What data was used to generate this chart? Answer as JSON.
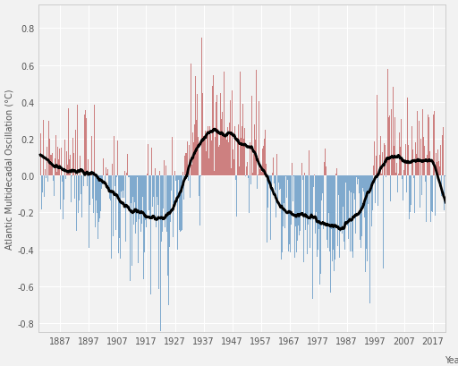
{
  "title": "",
  "ylabel": "Atlantic Multidecadal Oscillation (°C)",
  "xlabel": "Year",
  "xlim": [
    1879.5,
    2021.5
  ],
  "ylim": [
    -0.85,
    0.93
  ],
  "yticks": [
    -0.8,
    -0.6,
    -0.4,
    -0.2,
    0.0,
    0.2,
    0.4,
    0.6,
    0.8
  ],
  "xticks": [
    1887,
    1897,
    1907,
    1917,
    1927,
    1937,
    1947,
    1957,
    1967,
    1977,
    1987,
    1997,
    2007,
    2017
  ],
  "bar_color_pos": "#cd8080",
  "bar_color_neg": "#80aace",
  "line_color": "#000000",
  "background_color": "#f2f2f2",
  "grid_color": "#ffffff",
  "figsize": [
    5.12,
    4.1
  ],
  "dpi": 100,
  "ylabel_fontsize": 7,
  "xlabel_fontsize": 7,
  "tick_fontsize": 7
}
